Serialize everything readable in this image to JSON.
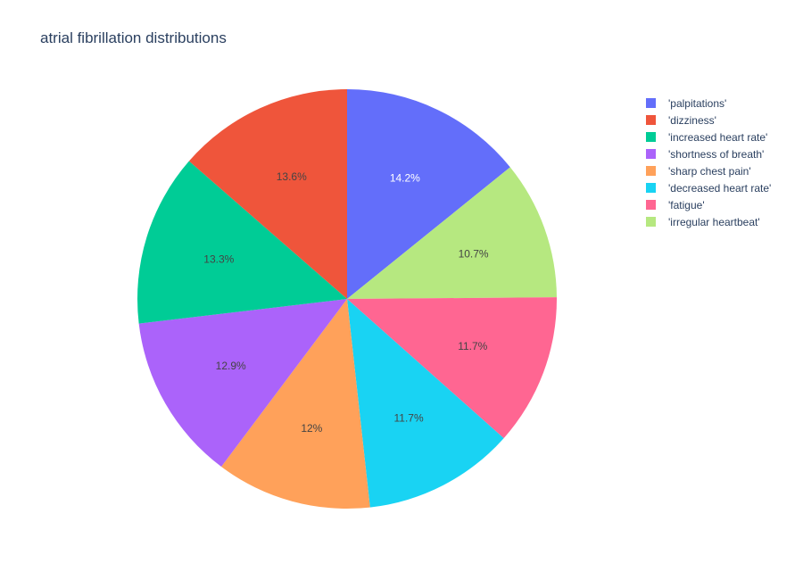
{
  "chart_data": {
    "type": "pie",
    "title": "atrial fibrillation distributions",
    "legend_position": "top-right",
    "direction": "clockwise",
    "sort": "descending",
    "slices": [
      {
        "label": "'palpitations'",
        "value": 14.2,
        "text": "14.2%",
        "color": "#636efa",
        "text_color": "#ffffff"
      },
      {
        "label": "'irregular heartbeat'",
        "value": 10.7,
        "text": "10.7%",
        "color": "#b6e880",
        "text_color": "#444444"
      },
      {
        "label": "'fatigue'",
        "value": 11.7,
        "text": "11.7%",
        "color": "#ff6692",
        "text_color": "#444444"
      },
      {
        "label": "'decreased heart rate'",
        "value": 11.7,
        "text": "11.7%",
        "color": "#19d3f3",
        "text_color": "#444444"
      },
      {
        "label": "'sharp chest pain'",
        "value": 12.0,
        "text": "12%",
        "color": "#ffa15a",
        "text_color": "#444444"
      },
      {
        "label": "'shortness of breath'",
        "value": 12.9,
        "text": "12.9%",
        "color": "#ab63fa",
        "text_color": "#444444"
      },
      {
        "label": "'increased heart rate'",
        "value": 13.3,
        "text": "13.3%",
        "color": "#00cc96",
        "text_color": "#444444"
      },
      {
        "label": "'dizziness'",
        "value": 13.6,
        "text": "13.6%",
        "color": "#ef553b",
        "text_color": "#444444"
      }
    ],
    "legend": [
      {
        "label": "'palpitations'",
        "color": "#636efa"
      },
      {
        "label": "'dizziness'",
        "color": "#ef553b"
      },
      {
        "label": "'increased heart rate'",
        "color": "#00cc96"
      },
      {
        "label": "'shortness of breath'",
        "color": "#ab63fa"
      },
      {
        "label": "'sharp chest pain'",
        "color": "#ffa15a"
      },
      {
        "label": "'decreased heart rate'",
        "color": "#19d3f3"
      },
      {
        "label": "'fatigue'",
        "color": "#ff6692"
      },
      {
        "label": "'irregular heartbeat'",
        "color": "#b6e880"
      }
    ]
  }
}
